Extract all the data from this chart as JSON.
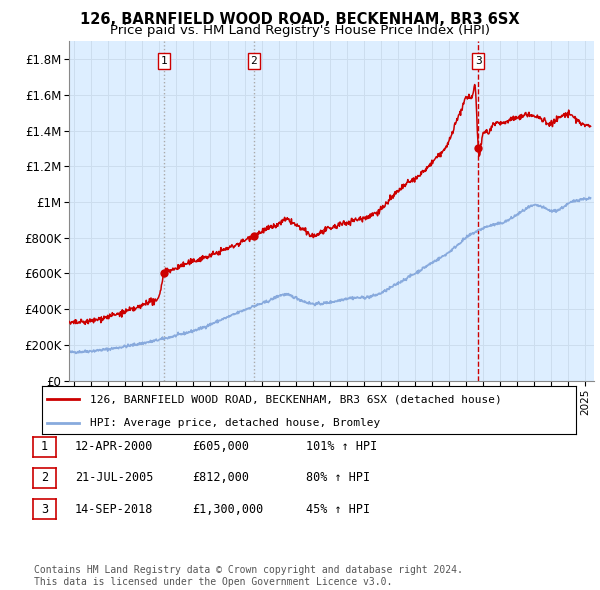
{
  "title": "126, BARNFIELD WOOD ROAD, BECKENHAM, BR3 6SX",
  "subtitle": "Price paid vs. HM Land Registry's House Price Index (HPI)",
  "ylim": [
    0,
    1900000
  ],
  "yticks": [
    0,
    200000,
    400000,
    600000,
    800000,
    1000000,
    1200000,
    1400000,
    1600000,
    1800000
  ],
  "ytick_labels": [
    "£0",
    "£200K",
    "£400K",
    "£600K",
    "£800K",
    "£1M",
    "£1.2M",
    "£1.4M",
    "£1.6M",
    "£1.8M"
  ],
  "xlim_start": 1994.7,
  "xlim_end": 2025.5,
  "sale_dates": [
    2000.28,
    2005.55,
    2018.71
  ],
  "sale_prices": [
    605000,
    812000,
    1300000
  ],
  "sale_labels": [
    "1",
    "2",
    "3"
  ],
  "hpi_color": "#88aadd",
  "price_color": "#cc0000",
  "vline_color_12": "#aaaaaa",
  "vline_color_3": "#cc0000",
  "grid_color": "#ccddee",
  "bg_color": "#ddeeff",
  "legend_entry1": "126, BARNFIELD WOOD ROAD, BECKENHAM, BR3 6SX (detached house)",
  "legend_entry2": "HPI: Average price, detached house, Bromley",
  "table_rows": [
    [
      "1",
      "12-APR-2000",
      "£605,000",
      "101% ↑ HPI"
    ],
    [
      "2",
      "21-JUL-2005",
      "£812,000",
      "80% ↑ HPI"
    ],
    [
      "3",
      "14-SEP-2018",
      "£1,300,000",
      "45% ↑ HPI"
    ]
  ],
  "footnote": "Contains HM Land Registry data © Crown copyright and database right 2024.\nThis data is licensed under the Open Government Licence v3.0.",
  "title_fontsize": 10.5,
  "subtitle_fontsize": 9.5
}
